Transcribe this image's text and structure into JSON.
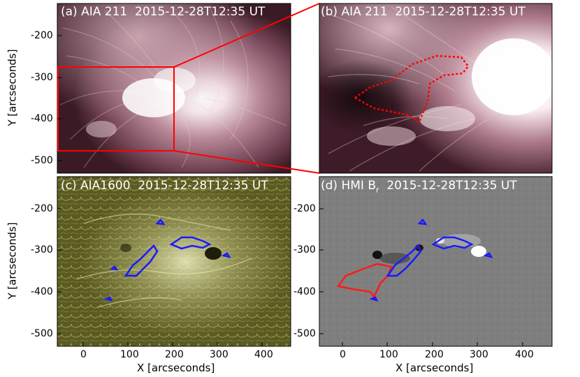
{
  "figure": {
    "panels": [
      {
        "id": "a",
        "label": "(a) AIA 211  2015-12-28T12:35 UT",
        "style": "aia211"
      },
      {
        "id": "b",
        "label": "(b) AIA 211  2015-12-28T12:35 UT",
        "style": "aia211-zoom"
      },
      {
        "id": "c",
        "label": "(c) AIA1600  2015-12-28T12:35 UT",
        "style": "aia1600"
      },
      {
        "id": "d",
        "label": "(d) HMI B",
        "label_sub": "r",
        "label_tail": "  2015-12-28T12:35 UT",
        "style": "hmi"
      }
    ],
    "y_axis_label": "Y [arcseconds]",
    "x_axis_label": "X [arcseconds]",
    "y_ticks": [
      "-200",
      "-300",
      "-400",
      "-500"
    ],
    "x_ticks": [
      "0",
      "100",
      "200",
      "300",
      "400"
    ],
    "colors": {
      "aia211_bg": "#3a1a25",
      "aia211_bright": "#ffffff",
      "aia1600_bg": "#4a4a1a",
      "hmi_bg": "#7d7d7d",
      "contour_blue": "#1a1aff",
      "contour_red": "#ff1a1a",
      "box_red": "#ff0000"
    }
  }
}
